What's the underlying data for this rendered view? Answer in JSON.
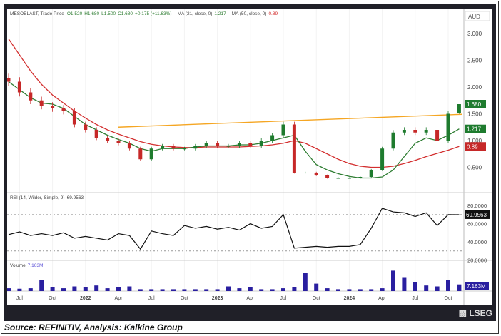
{
  "header": {
    "symbol": "MESOBLAST, Trade Price",
    "o": "O1.520",
    "h": "H1.680",
    "l": "L1.500",
    "c": "C1.680",
    "chg": "+0.175 (+11.63%)",
    "ma21_label": "MA (21, close, 0)",
    "ma21_val": "1.217",
    "ma50_label": "MA (50, close, 0)",
    "ma50_val": "0.89"
  },
  "rsi_label": "RSI (14, Wilder, Simple, 9)",
  "rsi_val": "69.9563",
  "volume_label": "Volume",
  "volume_val": "7.163M",
  "currency": "AUD",
  "logo": "LSEG",
  "caption": "Source: REFINITIV, Analysis: Kalkine Group",
  "colors": {
    "up": "#1e7b2e",
    "down": "#c62828",
    "ma21": "#2e7d32",
    "ma50": "#d32f2f",
    "trendline": "#f5a623",
    "rsi": "#111111",
    "volume": "#2a1fa0"
  },
  "chart_data": {
    "type": "candlestick",
    "price_axis": {
      "ticks": [
        "3.000",
        "2.500",
        "2.000",
        "1.500",
        "1.000",
        "0.500"
      ],
      "range": [
        0,
        3.3
      ],
      "unit": "AUD"
    },
    "x_ticks": [
      "Jul",
      "Oct",
      "2022",
      "Apr",
      "Jul",
      "Oct",
      "2023",
      "Apr",
      "Jul",
      "Oct",
      "2024",
      "Apr",
      "Jul",
      "Oct"
    ],
    "x_tick_months": [
      "2021-07",
      "2021-10",
      "2022-01",
      "2022-04",
      "2022-07",
      "2022-10",
      "2023-01",
      "2023-04",
      "2023-07",
      "2023-10",
      "2024-01",
      "2024-04",
      "2024-07",
      "2024-10"
    ],
    "months": [
      "2021-06",
      "2021-07",
      "2021-08",
      "2021-09",
      "2021-10",
      "2021-11",
      "2021-12",
      "2022-01",
      "2022-02",
      "2022-03",
      "2022-04",
      "2022-05",
      "2022-06",
      "2022-07",
      "2022-08",
      "2022-09",
      "2022-10",
      "2022-11",
      "2022-12",
      "2023-01",
      "2023-02",
      "2023-03",
      "2023-04",
      "2023-05",
      "2023-06",
      "2023-07",
      "2023-08",
      "2023-09",
      "2023-10",
      "2023-11",
      "2023-12",
      "2024-01",
      "2024-02",
      "2024-03",
      "2024-04",
      "2024-05",
      "2024-06",
      "2024-07",
      "2024-08",
      "2024-09",
      "2024-10",
      "2024-11"
    ],
    "close": [
      2.1,
      1.9,
      1.75,
      1.65,
      1.6,
      1.55,
      1.3,
      1.2,
      1.05,
      1.0,
      0.95,
      0.85,
      0.65,
      0.85,
      0.9,
      0.85,
      0.85,
      0.9,
      0.95,
      0.9,
      0.9,
      0.95,
      0.9,
      1.0,
      1.1,
      1.3,
      0.4,
      0.4,
      0.35,
      0.3,
      0.3,
      0.3,
      0.32,
      0.45,
      0.85,
      1.15,
      1.2,
      1.15,
      1.2,
      1.0,
      1.5,
      1.68
    ],
    "last": {
      "open": 1.52,
      "high": 1.68,
      "low": 1.5,
      "close": 1.68
    },
    "ma21": [
      2.1,
      1.95,
      1.8,
      1.7,
      1.68,
      1.6,
      1.45,
      1.3,
      1.2,
      1.1,
      1.02,
      0.95,
      0.85,
      0.8,
      0.85,
      0.85,
      0.85,
      0.88,
      0.9,
      0.9,
      0.9,
      0.92,
      0.92,
      0.95,
      1.0,
      1.05,
      1.1,
      0.8,
      0.55,
      0.45,
      0.38,
      0.33,
      0.3,
      0.3,
      0.32,
      0.45,
      0.7,
      0.95,
      1.05,
      1.0,
      1.1,
      1.217
    ],
    "ma50": [
      2.9,
      2.6,
      2.3,
      2.05,
      1.85,
      1.7,
      1.55,
      1.42,
      1.3,
      1.2,
      1.12,
      1.05,
      0.98,
      0.93,
      0.9,
      0.88,
      0.87,
      0.87,
      0.88,
      0.88,
      0.88,
      0.88,
      0.89,
      0.9,
      0.92,
      0.95,
      1.0,
      0.95,
      0.85,
      0.75,
      0.65,
      0.57,
      0.52,
      0.5,
      0.5,
      0.52,
      0.57,
      0.63,
      0.7,
      0.76,
      0.82,
      0.89
    ],
    "trendline": {
      "start": {
        "month": "2022-04",
        "value": 1.25
      },
      "end": {
        "month": "2024-11",
        "value": 1.49
      }
    },
    "rsi": {
      "ticks": [
        "80.0000",
        "60.0000",
        "40.0000",
        "20.0000"
      ],
      "levels": [
        70,
        30
      ],
      "values": [
        48,
        51,
        47,
        49,
        47,
        50,
        44,
        46,
        44,
        42,
        49,
        47,
        32,
        52,
        49,
        47,
        58,
        55,
        57,
        54,
        56,
        53,
        60,
        55,
        57,
        70,
        33,
        34,
        35,
        34,
        35,
        35,
        37,
        55,
        77,
        73,
        72,
        68,
        72,
        58,
        70,
        69.9563
      ]
    },
    "volume_m": [
      3,
      2.5,
      3,
      12,
      4,
      3,
      5,
      4,
      6,
      3,
      4,
      5,
      2,
      2,
      2,
      2,
      2,
      2,
      2,
      2,
      5,
      3,
      4,
      2,
      2,
      3,
      4,
      20,
      8,
      3,
      2,
      2,
      2,
      2,
      3,
      22,
      15,
      10,
      6,
      5,
      12,
      7.163
    ]
  }
}
